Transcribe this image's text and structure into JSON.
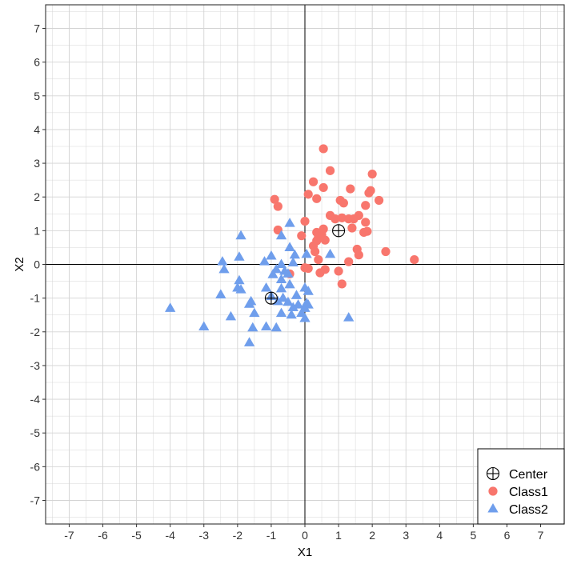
{
  "chart_data": {
    "type": "scatter",
    "title": "",
    "xlabel": "X1",
    "ylabel": "X2",
    "xlim": [
      -7.7,
      7.7
    ],
    "ylim": [
      -7.7,
      7.7
    ],
    "xticks": [
      "-7",
      "-6",
      "-5",
      "-4",
      "-3",
      "-2",
      "-1",
      "0",
      "1",
      "2",
      "3",
      "4",
      "5",
      "6",
      "7"
    ],
    "yticks": [
      "-7",
      "-6",
      "-5",
      "-4",
      "-3",
      "-2",
      "-1",
      "0",
      "1",
      "2",
      "3",
      "4",
      "5",
      "6",
      "7"
    ],
    "grid": true,
    "reference_lines": {
      "x": 0,
      "y": 0
    },
    "legend_position": "bottom-right",
    "colors": {
      "class1": "#F8766D",
      "class2": "#6F9EEC",
      "grid": "#d3d3d3",
      "axis_line": "#000000"
    },
    "series": [
      {
        "name": "Center",
        "marker": "circle-cross",
        "points": [
          [
            1,
            1
          ],
          [
            -1,
            -1
          ]
        ]
      },
      {
        "name": "Class1",
        "marker": "circle",
        "points": [
          [
            0.55,
            3.43
          ],
          [
            0.75,
            2.78
          ],
          [
            2.0,
            2.68
          ],
          [
            0.25,
            2.45
          ],
          [
            0.55,
            2.28
          ],
          [
            1.35,
            2.24
          ],
          [
            1.95,
            2.19
          ],
          [
            1.9,
            2.12
          ],
          [
            0.1,
            2.08
          ],
          [
            -0.9,
            1.93
          ],
          [
            1.05,
            1.9
          ],
          [
            2.2,
            1.9
          ],
          [
            0.35,
            1.95
          ],
          [
            1.15,
            1.82
          ],
          [
            1.8,
            1.75
          ],
          [
            -0.8,
            1.72
          ],
          [
            0.75,
            1.45
          ],
          [
            1.6,
            1.45
          ],
          [
            0.9,
            1.35
          ],
          [
            1.1,
            1.38
          ],
          [
            1.3,
            1.35
          ],
          [
            1.45,
            1.35
          ],
          [
            1.8,
            1.25
          ],
          [
            0.0,
            1.28
          ],
          [
            0.55,
            1.05
          ],
          [
            1.4,
            1.08
          ],
          [
            1.85,
            0.98
          ],
          [
            1.75,
            0.95
          ],
          [
            0.35,
            0.95
          ],
          [
            0.5,
            0.88
          ],
          [
            -0.1,
            0.85
          ],
          [
            0.4,
            0.8
          ],
          [
            0.35,
            0.7
          ],
          [
            0.6,
            0.72
          ],
          [
            -0.8,
            1.02
          ],
          [
            0.25,
            0.55
          ],
          [
            0.3,
            0.38
          ],
          [
            1.55,
            0.45
          ],
          [
            1.6,
            0.28
          ],
          [
            2.4,
            0.38
          ],
          [
            3.25,
            0.14
          ],
          [
            0.4,
            0.14
          ],
          [
            1.3,
            0.08
          ],
          [
            0.0,
            -0.1
          ],
          [
            0.1,
            -0.12
          ],
          [
            0.45,
            -0.25
          ],
          [
            0.6,
            -0.15
          ],
          [
            1.0,
            -0.2
          ],
          [
            1.1,
            -0.58
          ],
          [
            -0.45,
            -0.28
          ]
        ]
      },
      {
        "name": "Class2",
        "marker": "triangle",
        "points": [
          [
            -0.45,
            1.22
          ],
          [
            -1.9,
            0.85
          ],
          [
            -0.7,
            0.85
          ],
          [
            -0.45,
            0.5
          ],
          [
            -1.0,
            0.25
          ],
          [
            -1.95,
            0.22
          ],
          [
            -0.3,
            0.28
          ],
          [
            0.05,
            0.3
          ],
          [
            0.75,
            0.3
          ],
          [
            -1.2,
            0.08
          ],
          [
            -2.45,
            0.08
          ],
          [
            -0.7,
            0.0
          ],
          [
            -0.35,
            0.05
          ],
          [
            -0.85,
            -0.15
          ],
          [
            -0.6,
            -0.2
          ],
          [
            -2.4,
            -0.15
          ],
          [
            -0.5,
            -0.28
          ],
          [
            -0.95,
            -0.3
          ],
          [
            -1.95,
            -0.48
          ],
          [
            -0.7,
            -0.45
          ],
          [
            -2.0,
            -0.7
          ],
          [
            -1.15,
            -0.7
          ],
          [
            -0.45,
            -0.6
          ],
          [
            -0.7,
            -0.72
          ],
          [
            0.0,
            -0.7
          ],
          [
            -1.9,
            -0.75
          ],
          [
            0.1,
            -0.8
          ],
          [
            -2.5,
            -0.9
          ],
          [
            -1.0,
            -0.95
          ],
          [
            -0.25,
            -0.92
          ],
          [
            -0.65,
            -1.0
          ],
          [
            -0.8,
            -1.1
          ],
          [
            -1.6,
            -1.1
          ],
          [
            -0.5,
            -1.12
          ],
          [
            -1.65,
            -1.18
          ],
          [
            -0.2,
            -1.2
          ],
          [
            0.05,
            -1.15
          ],
          [
            -0.35,
            -1.28
          ],
          [
            0.0,
            -1.3
          ],
          [
            -1.5,
            -1.45
          ],
          [
            -0.7,
            -1.45
          ],
          [
            -0.4,
            -1.5
          ],
          [
            -0.1,
            -1.45
          ],
          [
            -4.0,
            -1.3
          ],
          [
            -2.2,
            -1.55
          ],
          [
            0.0,
            -1.6
          ],
          [
            1.3,
            -1.58
          ],
          [
            -3.0,
            -1.85
          ],
          [
            -1.55,
            -1.88
          ],
          [
            -1.15,
            -1.85
          ],
          [
            -0.85,
            -1.88
          ],
          [
            -1.65,
            -2.32
          ],
          [
            0.1,
            -1.2
          ]
        ]
      }
    ]
  }
}
